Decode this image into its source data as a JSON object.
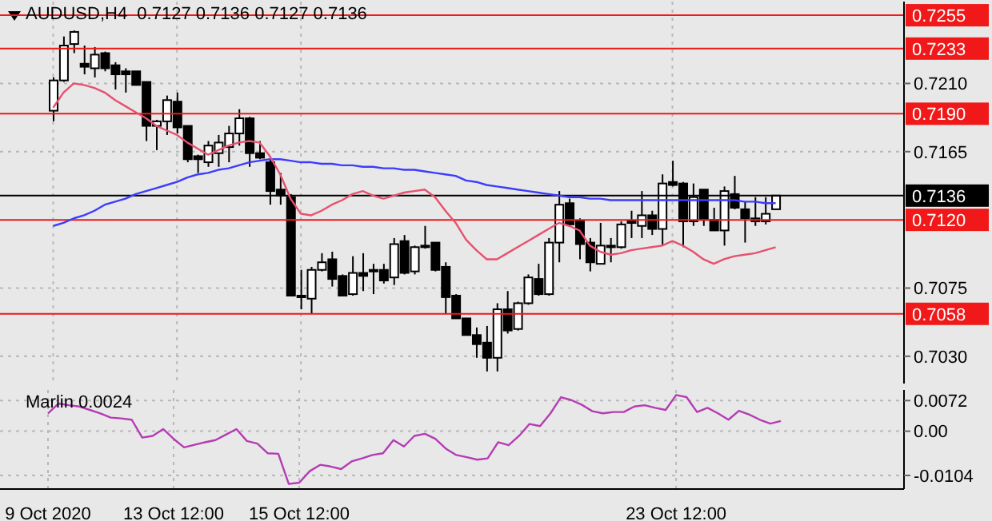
{
  "chart_data": [
    {
      "type": "candlestick",
      "title": "AUDUSD,H4  0.7127 0.7136 0.7127 0.7136",
      "categories": [
        null,
        null,
        null,
        null,
        null,
        null,
        null,
        null,
        null,
        null,
        null,
        null,
        null,
        null,
        null,
        null,
        null,
        null,
        null,
        null,
        null,
        null,
        null,
        null,
        null,
        null,
        null,
        null,
        null,
        null,
        null,
        null,
        null,
        null,
        null,
        null,
        null,
        null,
        null,
        null,
        null,
        null,
        null,
        null,
        null,
        null,
        null,
        null,
        null,
        null,
        null,
        null,
        null,
        null,
        null,
        null,
        null,
        null,
        null,
        null,
        null,
        null,
        null,
        null,
        null,
        null,
        null,
        null,
        null,
        null,
        null
      ],
      "ohlc": [
        [
          0.7192,
          0.7214,
          0.7185,
          0.7212
        ],
        [
          0.7212,
          0.7241,
          0.7211,
          0.7235
        ],
        [
          0.7236,
          0.7245,
          0.723,
          0.7244
        ],
        [
          0.7223,
          0.7235,
          0.7216,
          0.7221
        ],
        [
          0.722,
          0.7234,
          0.7214,
          0.7229
        ],
        [
          0.723,
          0.7231,
          0.7218,
          0.722
        ],
        [
          0.7222,
          0.7224,
          0.7206,
          0.7216
        ],
        [
          0.7218,
          0.722,
          0.7204,
          0.7216
        ],
        [
          0.7218,
          0.7218,
          0.7209,
          0.7209
        ],
        [
          0.7211,
          0.7211,
          0.7172,
          0.7182
        ],
        [
          0.7182,
          0.7186,
          0.7166,
          0.7185
        ],
        [
          0.7185,
          0.7202,
          0.7176,
          0.7199
        ],
        [
          0.7198,
          0.7204,
          0.7177,
          0.7181
        ],
        [
          0.7182,
          0.7182,
          0.7158,
          0.716
        ],
        [
          0.7162,
          0.7163,
          0.7151,
          0.716
        ],
        [
          0.7158,
          0.7172,
          0.7155,
          0.7169
        ],
        [
          0.7164,
          0.7176,
          0.7155,
          0.7171
        ],
        [
          0.7168,
          0.7182,
          0.7158,
          0.7177
        ],
        [
          0.7177,
          0.7193,
          0.7169,
          0.7187
        ],
        [
          0.7187,
          0.7188,
          0.7155,
          0.7164
        ],
        [
          0.7164,
          0.7172,
          0.716,
          0.7161
        ],
        [
          0.7158,
          0.7161,
          0.713,
          0.7139
        ],
        [
          0.714,
          0.7151,
          0.713,
          0.7136
        ],
        [
          0.7135,
          0.7137,
          0.707,
          0.707
        ],
        [
          0.707,
          0.7087,
          0.7061,
          0.7069
        ],
        [
          0.7068,
          0.7089,
          0.7058,
          0.7087
        ],
        [
          0.7087,
          0.7098,
          0.7086,
          0.7092
        ],
        [
          0.7094,
          0.7099,
          0.7076,
          0.7081
        ],
        [
          0.7083,
          0.7084,
          0.707,
          0.707
        ],
        [
          0.7071,
          0.7096,
          0.707,
          0.7085
        ],
        [
          0.7085,
          0.7098,
          0.7073,
          0.7083
        ],
        [
          0.7086,
          0.7091,
          0.7071,
          0.7087
        ],
        [
          0.7087,
          0.7091,
          0.7078,
          0.708
        ],
        [
          0.7082,
          0.7108,
          0.7077,
          0.7104
        ],
        [
          0.7106,
          0.711,
          0.7084,
          0.7085
        ],
        [
          0.7086,
          0.7103,
          0.7084,
          0.7102
        ],
        [
          0.7103,
          0.7116,
          0.7101,
          0.7102
        ],
        [
          0.7105,
          0.7105,
          0.7086,
          0.7087
        ],
        [
          0.7089,
          0.7092,
          0.7058,
          0.7069
        ],
        [
          0.707,
          0.7071,
          0.7055,
          0.7055
        ],
        [
          0.7055,
          0.7055,
          0.7044,
          0.7044
        ],
        [
          0.7044,
          0.7049,
          0.7029,
          0.7038
        ],
        [
          0.7039,
          0.705,
          0.702,
          0.7029
        ],
        [
          0.7029,
          0.7065,
          0.702,
          0.7061
        ],
        [
          0.7061,
          0.7073,
          0.7045,
          0.7047
        ],
        [
          0.7048,
          0.7066,
          0.7047,
          0.7065
        ],
        [
          0.7065,
          0.7084,
          0.7064,
          0.7082
        ],
        [
          0.7081,
          0.7091,
          0.707,
          0.7071
        ],
        [
          0.7071,
          0.7108,
          0.707,
          0.7105
        ],
        [
          0.7105,
          0.7139,
          0.7092,
          0.713
        ],
        [
          0.7131,
          0.7134,
          0.7116,
          0.7117
        ],
        [
          0.7119,
          0.7121,
          0.7094,
          0.7104
        ],
        [
          0.7105,
          0.7108,
          0.7086,
          0.7092
        ],
        [
          0.7091,
          0.7118,
          0.7091,
          0.7103
        ],
        [
          0.7103,
          0.7108,
          0.7092,
          0.7102
        ],
        [
          0.7102,
          0.7119,
          0.7101,
          0.7117
        ],
        [
          0.7118,
          0.7126,
          0.7108,
          0.7119
        ],
        [
          0.7116,
          0.7139,
          0.7108,
          0.7123
        ],
        [
          0.7123,
          0.7126,
          0.711,
          0.7114
        ],
        [
          0.7114,
          0.715,
          0.7103,
          0.7144
        ],
        [
          0.7145,
          0.7159,
          0.7142,
          0.7143
        ],
        [
          0.7144,
          0.7145,
          0.7102,
          0.7119
        ],
        [
          0.7119,
          0.7144,
          0.7116,
          0.7135
        ],
        [
          0.714,
          0.714,
          0.7116,
          0.712
        ],
        [
          0.712,
          0.7128,
          0.7113,
          0.7113
        ],
        [
          0.7113,
          0.7142,
          0.7103,
          0.7139
        ],
        [
          0.7137,
          0.7149,
          0.7127,
          0.7128
        ],
        [
          0.7127,
          0.7132,
          0.7105,
          0.7121
        ],
        [
          0.7121,
          0.7135,
          0.7116,
          0.7119
        ],
        [
          0.7119,
          0.7135,
          0.7117,
          0.7124
        ],
        [
          0.7127,
          0.7136,
          0.7127,
          0.7136
        ]
      ],
      "series": [
        {
          "type": "line",
          "color": "#3c3cff",
          "values": [
            0.7116,
            0.7118,
            0.7121,
            0.7123,
            0.7126,
            0.713,
            0.7132,
            0.7134,
            0.7137,
            0.7139,
            0.7141,
            0.7143,
            0.7145,
            0.7148,
            0.715,
            0.7151,
            0.7153,
            0.7154,
            0.7156,
            0.7158,
            0.7159,
            0.716,
            0.716,
            0.7159,
            0.7158,
            0.7158,
            0.7157,
            0.7157,
            0.7156,
            0.7156,
            0.7155,
            0.7155,
            0.7154,
            0.7154,
            0.7153,
            0.7153,
            0.7152,
            0.7151,
            0.715,
            0.7149,
            0.7146,
            0.7145,
            0.7143,
            0.7142,
            0.7141,
            0.714,
            0.7139,
            0.7138,
            0.7137,
            0.7136,
            0.7135,
            0.7135,
            0.7134,
            0.7134,
            0.7133,
            0.7133,
            0.7133,
            0.7133,
            0.7133,
            0.7133,
            0.7133,
            0.7133,
            0.7133,
            0.7133,
            0.7133,
            0.7133,
            0.7133,
            0.7132,
            0.7132,
            0.7131,
            0.7131
          ]
        },
        {
          "type": "line",
          "color": "#e8506e",
          "values": [
            0.7194,
            0.7204,
            0.721,
            0.7209,
            0.7207,
            0.7204,
            0.7199,
            0.7195,
            0.7191,
            0.7187,
            0.7182,
            0.7179,
            0.7176,
            0.7171,
            0.7167,
            0.7163,
            0.7166,
            0.7169,
            0.7171,
            0.7172,
            0.7171,
            0.7162,
            0.715,
            0.7134,
            0.7124,
            0.7123,
            0.7126,
            0.713,
            0.7133,
            0.7137,
            0.7139,
            0.7136,
            0.7134,
            0.7136,
            0.7138,
            0.7139,
            0.714,
            0.7135,
            0.7126,
            0.7118,
            0.7107,
            0.71,
            0.7094,
            0.7094,
            0.7098,
            0.7102,
            0.7106,
            0.711,
            0.7114,
            0.7118,
            0.7116,
            0.7113,
            0.7103,
            0.7099,
            0.7097,
            0.7098,
            0.71,
            0.7101,
            0.7102,
            0.7103,
            0.7106,
            0.7103,
            0.7099,
            0.7094,
            0.7091,
            0.7094,
            0.7096,
            0.7097,
            0.7098,
            0.71,
            0.7102
          ]
        }
      ],
      "ylim": [
        0.7012,
        0.7264
      ],
      "yticks": [
        {
          "value": 0.721,
          "label": "0.7210"
        },
        0.7165,
        0.7075,
        {
          "value": 0.703,
          "label": "0.7030"
        }
      ],
      "ref_lines": [
        {
          "axis": "y",
          "value": 0.7255,
          "label": "0.7255",
          "color": "#f01818"
        },
        {
          "axis": "y",
          "value": 0.7233,
          "label": "0.7233",
          "color": "#f01818"
        },
        {
          "axis": "y",
          "value": 0.719,
          "label": "0.7190",
          "color": "#f01818"
        },
        {
          "axis": "y",
          "value": 0.7136,
          "label": "0.7136",
          "color": "#000000"
        },
        {
          "axis": "y",
          "value": 0.712,
          "label": "0.7120",
          "color": "#f01818"
        },
        {
          "axis": "y",
          "value": 0.7058,
          "label": "0.7058",
          "color": "#f01818"
        }
      ],
      "grid": true,
      "tick_labels": "y"
    },
    {
      "type": "line",
      "title": "Marlin 0.0024",
      "categories": [
        "9 Oct 2020",
        null,
        null,
        null,
        null,
        null,
        null,
        null,
        null,
        null,
        null,
        null,
        "13 Oct 12:00",
        null,
        null,
        null,
        null,
        null,
        null,
        null,
        null,
        null,
        null,
        null,
        "15 Oct 12:00",
        null,
        null,
        null,
        null,
        null,
        null,
        null,
        null,
        null,
        null,
        null,
        null,
        null,
        null,
        null,
        null,
        null,
        null,
        null,
        null,
        null,
        null,
        null,
        null,
        null,
        null,
        null,
        null,
        null,
        null,
        null,
        null,
        null,
        null,
        null,
        "23 Oct 12:00",
        null,
        null,
        null,
        null,
        null,
        null,
        null,
        null,
        null,
        null
      ],
      "series": [
        {
          "color": "#b43cb4",
          "values": [
            0.0042,
            0.0065,
            0.0061,
            0.0058,
            0.005,
            0.0042,
            0.0032,
            0.003,
            0.0027,
            -0.0015,
            -0.0011,
            0.0005,
            -0.0018,
            -0.0038,
            -0.0032,
            -0.0026,
            -0.0021,
            -0.0008,
            0.0005,
            -0.0023,
            -0.0029,
            -0.0052,
            -0.0053,
            -0.0124,
            -0.0121,
            -0.0094,
            -0.0079,
            -0.0083,
            -0.0089,
            -0.0071,
            -0.0064,
            -0.0056,
            -0.0052,
            -0.0021,
            -0.0036,
            -0.0011,
            -0.0006,
            -0.0018,
            -0.0041,
            -0.0056,
            -0.0061,
            -0.0067,
            -0.0064,
            -0.0026,
            -0.0033,
            -0.0011,
            0.0017,
            0.0012,
            0.0042,
            0.008,
            0.0073,
            0.0062,
            0.0047,
            0.0042,
            0.0045,
            0.0045,
            0.0058,
            0.0061,
            0.0055,
            0.005,
            0.0085,
            0.008,
            0.0045,
            0.0055,
            0.0042,
            0.0027,
            0.0048,
            0.0039,
            0.0027,
            0.0018,
            0.0024
          ]
        }
      ],
      "ylim": [
        -0.0136,
        0.0097
      ],
      "yticks": [
        0.0072,
        {
          "value": 0,
          "label": "0.00"
        },
        -0.0104
      ],
      "grid": true
    }
  ]
}
